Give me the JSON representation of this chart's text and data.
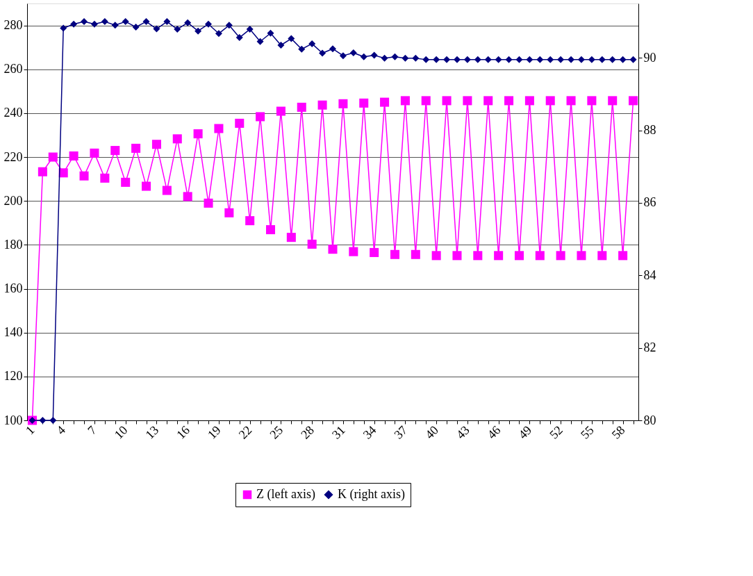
{
  "chart_data": {
    "type": "line",
    "categories": [
      "1",
      null,
      null,
      "4",
      null,
      null,
      "7",
      null,
      null,
      "10",
      null,
      null,
      "13",
      null,
      null,
      "16",
      null,
      null,
      "19",
      null,
      null,
      "22",
      null,
      null,
      "25",
      null,
      null,
      "28",
      null,
      null,
      "31",
      null,
      null,
      "34",
      null,
      null,
      "37",
      null,
      null,
      "40",
      null,
      null,
      "43",
      null,
      null,
      "46",
      null,
      null,
      "49",
      null,
      null,
      "52",
      null,
      null,
      "55",
      null,
      null,
      "58",
      null
    ],
    "series": [
      {
        "name": "Z (left axis)",
        "color": "#ff00ff",
        "marker": "square",
        "axis": "y",
        "values": [
          100,
          213.3,
          220,
          212.8,
          220.5,
          211.4,
          221.8,
          210.4,
          223,
          208.5,
          224,
          206.7,
          225.8,
          204.8,
          228.3,
          202,
          230.6,
          199,
          233,
          194.6,
          235.4,
          191,
          238.4,
          186.9,
          240.9,
          183.4,
          242.7,
          180.3,
          243.7,
          178,
          244.3,
          176.9,
          244.6,
          176.5,
          245,
          175.6,
          245.7,
          175.6,
          245.7,
          175.1,
          245.7,
          175.1,
          245.7,
          175.1,
          245.7,
          175.1,
          245.7,
          175.1,
          245.7,
          175.1,
          245.7,
          175.1,
          245.7,
          175.1,
          245.7,
          175.1,
          245.7,
          175.1,
          245.7
        ]
      },
      {
        "name": "K (right axis)",
        "color": "#000080",
        "marker": "diamond",
        "axis": "y2",
        "values": [
          80,
          80,
          80,
          90.82,
          90.93,
          91.0,
          90.93,
          91.0,
          90.9,
          91.0,
          90.85,
          91.0,
          90.8,
          91.0,
          90.79,
          90.97,
          90.74,
          90.93,
          90.67,
          90.9,
          90.56,
          90.79,
          90.45,
          90.68,
          90.35,
          90.53,
          90.24,
          90.39,
          90.13,
          90.25,
          90.06,
          90.14,
          90.03,
          90.07,
          89.99,
          90.03,
          89.99,
          89.99,
          89.95,
          89.95,
          89.95,
          89.95,
          89.95,
          89.95,
          89.95,
          89.95,
          89.95,
          89.95,
          89.95,
          89.95,
          89.95,
          89.95,
          89.95,
          89.95,
          89.95,
          89.95,
          89.95,
          89.95,
          89.95
        ]
      }
    ],
    "ylim": [
      100,
      290
    ],
    "yticks": [
      100,
      120,
      140,
      160,
      180,
      200,
      220,
      240,
      260,
      280
    ],
    "y2lim": [
      80,
      91.5
    ],
    "y2ticks": [
      80,
      82,
      84,
      86,
      88,
      90
    ],
    "grid": "y",
    "legend": "bottom"
  }
}
